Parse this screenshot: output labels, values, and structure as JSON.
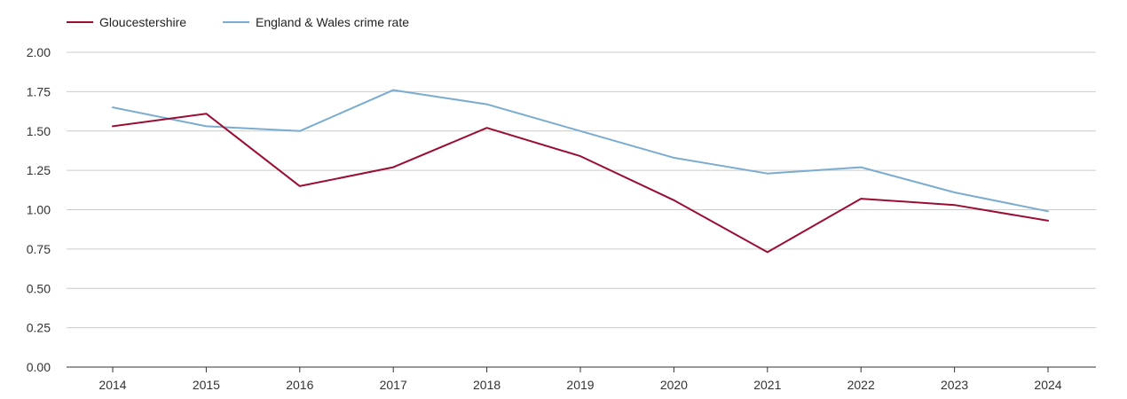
{
  "chart_data": {
    "type": "line",
    "title": "",
    "xlabel": "",
    "ylabel": "",
    "x": [
      "2014",
      "2015",
      "2016",
      "2017",
      "2018",
      "2019",
      "2020",
      "2021",
      "2022",
      "2023",
      "2024"
    ],
    "ylim": [
      0,
      2
    ],
    "yticks": [
      "0.00",
      "0.25",
      "0.50",
      "0.75",
      "1.00",
      "1.25",
      "1.50",
      "1.75",
      "2.00"
    ],
    "grid": true,
    "legend_position": "top-left",
    "series": [
      {
        "name": "Gloucestershire",
        "color": "#9b0d32",
        "values": [
          1.53,
          1.61,
          1.15,
          1.27,
          1.52,
          1.34,
          1.06,
          0.73,
          1.07,
          1.03,
          0.93
        ]
      },
      {
        "name": "England & Wales crime rate",
        "color": "#7aacd0",
        "values": [
          1.65,
          1.53,
          1.5,
          1.76,
          1.67,
          1.5,
          1.33,
          1.23,
          1.27,
          1.11,
          0.99
        ]
      }
    ]
  }
}
